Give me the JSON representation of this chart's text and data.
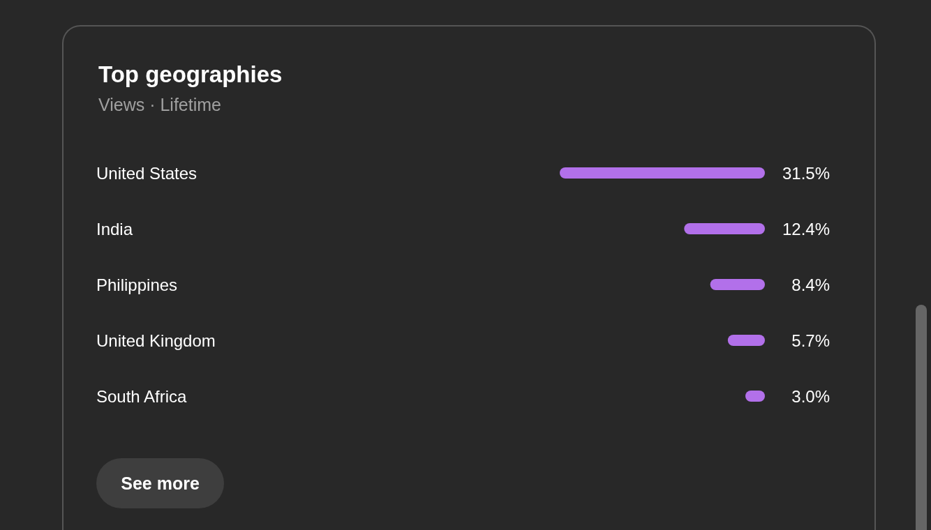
{
  "chart_data": {
    "type": "bar",
    "orientation": "horizontal",
    "title": "Top geographies",
    "subtitle": "Views · Lifetime",
    "categories": [
      "United States",
      "India",
      "Philippines",
      "United Kingdom",
      "South Africa"
    ],
    "values": [
      31.5,
      12.4,
      8.4,
      5.7,
      3.0
    ],
    "color": "#b270ea",
    "value_labels": [
      "31.5%",
      "12.4%",
      "8.4%",
      "5.7%",
      "3.0%"
    ],
    "annotations": [
      "See more"
    ],
    "grid": false
  }
}
